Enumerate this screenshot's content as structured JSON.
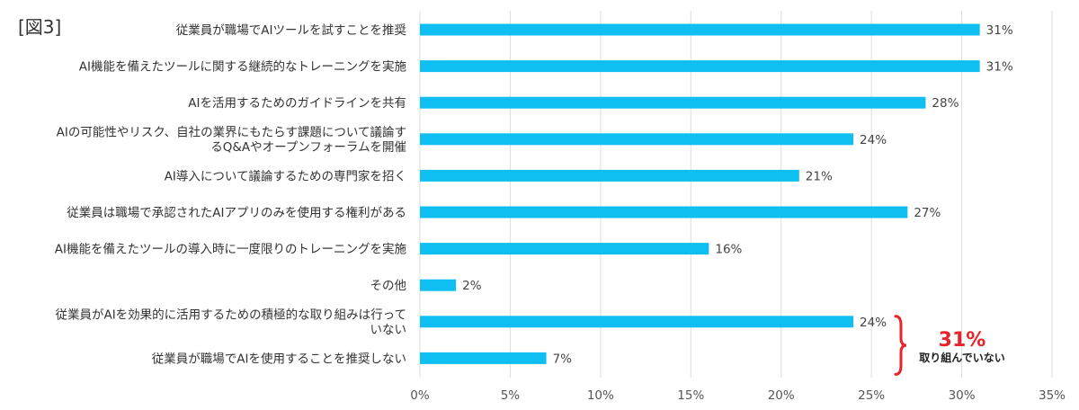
{
  "figure_label": "[図3]",
  "colors": {
    "bar": "#10bff2",
    "grid": "#dedede",
    "brace": "#e8232b",
    "annotation_value": "#e8232b"
  },
  "chart_data": {
    "type": "bar",
    "orientation": "horizontal",
    "categories": [
      [
        "従業員が職場でAIツールを試すことを推奨"
      ],
      [
        "AI機能を備えたツールに関する継続的なトレーニングを実施"
      ],
      [
        "AIを活用するためのガイドラインを共有"
      ],
      [
        "AIの可能性やリスク、自社の業界にもたらす課題について議論す",
        "るQ&Aやオープンフォーラムを開催"
      ],
      [
        "AI導入について議論するための専門家を招く"
      ],
      [
        "従業員は職場で承認されたAIアプリのみを使用する権利がある"
      ],
      [
        "AI機能を備えたツールの導入時に一度限りのトレーニングを実施"
      ],
      [
        "その他"
      ],
      [
        "従業員がAIを効果的に活用するための積極的な取り組みは行って",
        "いない"
      ],
      [
        "従業員が職場でAIを使用することを推奨しない"
      ]
    ],
    "values": [
      31,
      31,
      28,
      24,
      21,
      27,
      16,
      2,
      24,
      7
    ],
    "value_labels": [
      "31%",
      "31%",
      "28%",
      "24%",
      "21%",
      "27%",
      "16%",
      "2%",
      "24%",
      "7%"
    ],
    "xlim": [
      0,
      35
    ],
    "xticks": [
      0,
      5,
      10,
      15,
      20,
      25,
      30,
      35
    ],
    "xtick_labels": [
      "0%",
      "5%",
      "10%",
      "15%",
      "20%",
      "25%",
      "30%",
      "35%"
    ],
    "grid": true,
    "annotation": {
      "value": "31%",
      "text": "取り組んでいない",
      "brackets_categories": [
        8,
        9
      ]
    }
  }
}
